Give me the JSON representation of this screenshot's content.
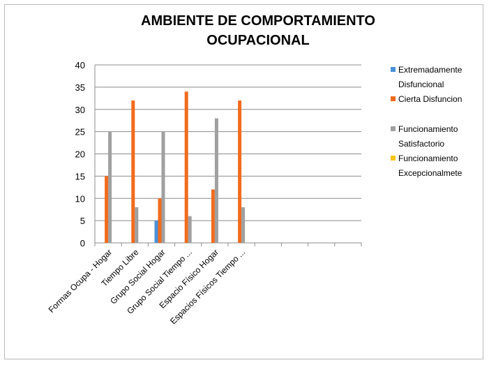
{
  "chart_data": {
    "type": "bar",
    "title_lines": [
      "AMBIENTE DE COMPORTAMIENTO",
      "OCUPACIONAL"
    ],
    "xlabel": "",
    "ylabel": "",
    "ylim": [
      0,
      40
    ],
    "yticks": [
      0,
      5,
      10,
      15,
      20,
      25,
      30,
      35,
      40
    ],
    "grid": true,
    "legend_position": "right",
    "category_slots": 10,
    "categories": [
      "Formas Ocupa - Hogar",
      "Tiempo Libre",
      "Grupo Social Hogar",
      "Grupo Social Tiempo ...",
      "Espacio Físico Hogar",
      "Espacios Físicos Tiempo ..."
    ],
    "series": [
      {
        "name": "Extremadamente Disfuncional",
        "legend_lines": [
          "Extremadamente",
          "Disfuncional"
        ],
        "color": "#4a90d9",
        "values": [
          0,
          0,
          5,
          0,
          0,
          0
        ]
      },
      {
        "name": "Cierta Disfuncion",
        "legend_lines": [
          "Cierta Disfuncion"
        ],
        "color": "#f26b1d",
        "values": [
          15,
          32,
          10,
          34,
          12,
          32
        ]
      },
      {
        "name": "Funcionamiento Satisfactorio",
        "legend_lines": [
          "Funcionamiento",
          "Satisfactorio"
        ],
        "color": "#a0a0a0",
        "values": [
          25,
          8,
          25,
          6,
          28,
          8
        ]
      },
      {
        "name": "Funcionamiento Excepcionalmete",
        "legend_lines": [
          "Funcionamiento",
          "Excepcionalmete"
        ],
        "color": "#f7c414",
        "values": [
          0,
          0,
          0,
          0,
          0,
          0
        ]
      }
    ]
  }
}
